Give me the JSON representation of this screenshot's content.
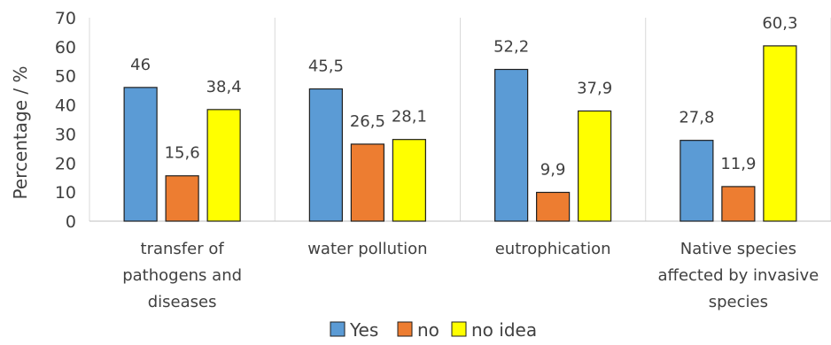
{
  "chart_data": {
    "type": "bar",
    "categories": [
      [
        "transfer of",
        "pathogens and",
        "diseases"
      ],
      [
        "water pollution"
      ],
      [
        "eutrophication"
      ],
      [
        "Native species",
        "affected by invasive",
        "species"
      ]
    ],
    "series": [
      {
        "name": "Yes",
        "color": "#5b9bd5",
        "values": [
          46,
          45.5,
          52.2,
          27.8
        ],
        "labels": [
          "46",
          "45,5",
          "52,2",
          "27,8"
        ]
      },
      {
        "name": "no",
        "color": "#ed7d31",
        "values": [
          15.6,
          26.5,
          9.9,
          11.9
        ],
        "labels": [
          "15,6",
          "26,5",
          "9,9",
          "11,9"
        ]
      },
      {
        "name": "no idea",
        "color": "#ffff00",
        "values": [
          38.4,
          28.1,
          37.9,
          60.3
        ],
        "labels": [
          "38,4",
          "28,1",
          "37,9",
          "60,3"
        ]
      }
    ],
    "ylabel": "Percentage / %",
    "ylim": [
      0,
      70
    ],
    "yticks": [
      0,
      10,
      20,
      30,
      40,
      50,
      60,
      70
    ],
    "grid": "vertical-category-separators",
    "legend": "bottom-center"
  }
}
